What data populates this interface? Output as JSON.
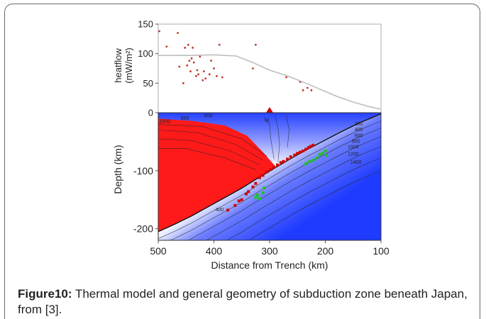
{
  "caption": {
    "label": "Figure10:",
    "text": " Thermal model and general geometry of subduction zone beneath Japan, from [3]."
  },
  "chart_data": [
    {
      "type": "scatter",
      "title": "",
      "ylabel": "heatflow",
      "ylabel_unit": "(mW/m²)",
      "xlim": [
        500,
        100
      ],
      "ylim": [
        0,
        150
      ],
      "yticks": [
        "0",
        "50",
        "100",
        "150"
      ],
      "series": [
        {
          "kind": "points",
          "x": [
            498,
            485,
            465,
            462,
            455,
            452,
            448,
            446,
            444,
            442,
            440,
            438,
            436,
            432,
            430,
            428,
            425,
            420,
            418,
            415,
            408,
            405,
            400,
            395,
            390,
            385,
            330,
            325,
            270,
            245,
            240,
            232,
            225
          ],
          "y": [
            138,
            112,
            135,
            78,
            50,
            110,
            80,
            115,
            88,
            70,
            92,
            110,
            85,
            62,
            72,
            65,
            95,
            55,
            70,
            58,
            65,
            88,
            75,
            62,
            115,
            60,
            75,
            115,
            60,
            52,
            38,
            42,
            38
          ]
        },
        {
          "kind": "line",
          "x": [
            500,
            440,
            400,
            360,
            330,
            300,
            270,
            240,
            210,
            180,
            150,
            120,
            100
          ],
          "y": [
            97,
            97,
            98,
            96,
            85,
            72,
            63,
            52,
            40,
            28,
            18,
            10,
            6
          ]
        }
      ],
      "markers": [
        {
          "x": 300,
          "y": 0,
          "shape": "volcano-triangle",
          "color": "#d40000"
        }
      ]
    },
    {
      "type": "heatmap",
      "title": "",
      "xlabel": "Distance from Trench (km)",
      "ylabel": "Depth (km)",
      "xlim": [
        500,
        100
      ],
      "ylim": [
        -220,
        0
      ],
      "xticks": [
        "500",
        "400",
        "300",
        "200",
        "100"
      ],
      "yticks": [
        "-100",
        "-200"
      ],
      "colorscale": {
        "cold": "#1f3bff",
        "mid": "#ffffff",
        "hot": "#ff1a1a"
      },
      "contour_labels": [
        "1000",
        "800",
        "600",
        "M",
        "200",
        "400",
        "600",
        "800",
        "1000",
        "1200",
        "1400",
        "400"
      ],
      "slab_top": {
        "x": [
          500,
          470,
          440,
          410,
          380,
          350,
          320,
          290,
          260,
          230,
          200,
          170,
          140,
          100
        ],
        "depth": [
          -205,
          -192,
          -178,
          -162,
          -146,
          -130,
          -112,
          -95,
          -78,
          -62,
          -47,
          -32,
          -18,
          -2
        ]
      },
      "earthquakes_red": {
        "x": [
          375,
          362,
          355,
          350,
          342,
          338,
          330,
          325,
          318,
          312,
          305,
          298,
          292,
          286,
          280,
          275,
          268,
          262,
          255,
          250,
          245,
          240,
          235,
          230,
          226,
          222
        ],
        "depth": [
          -168,
          -160,
          -152,
          -150,
          -140,
          -136,
          -128,
          -122,
          -112,
          -108,
          -102,
          -98,
          -94,
          -90,
          -86,
          -84,
          -80,
          -76,
          -73,
          -70,
          -68,
          -66,
          -63,
          -60,
          -58,
          -56
        ]
      },
      "earthquakes_green": {
        "x": [
          325,
          322,
          318,
          312,
          310,
          235,
          228,
          222,
          215,
          210,
          205,
          200,
          198
        ],
        "depth": [
          -146,
          -142,
          -148,
          -138,
          -130,
          -88,
          -84,
          -82,
          -78,
          -72,
          -70,
          -66,
          -74
        ]
      }
    }
  ]
}
